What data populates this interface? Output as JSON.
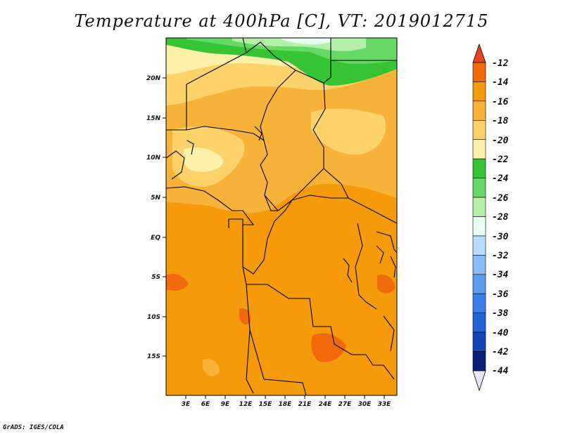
{
  "title": "Temperature at 400hPa [C], VT: 2019012715",
  "credit": "GrADS: IGES/COLA",
  "map": {
    "lat_labels": [
      "20N",
      "15N",
      "10N",
      "5N",
      "EQ",
      "5S",
      "10S",
      "15S"
    ],
    "lon_labels": [
      "3E",
      "6E",
      "9E",
      "12E",
      "15E",
      "18E",
      "21E",
      "24E",
      "27E",
      "30E",
      "33E"
    ]
  },
  "colorbar": {
    "labels": [
      "-12",
      "-14",
      "-16",
      "-18",
      "-20",
      "-22",
      "-24",
      "-26",
      "-28",
      "-30",
      "-32",
      "-34",
      "-36",
      "-38",
      "-40",
      "-42",
      "-44"
    ],
    "colors": [
      "#e8461e",
      "#f06a0c",
      "#f59a0a",
      "#f7b23a",
      "#fbd36a",
      "#fdf0a8",
      "#34c434",
      "#66d866",
      "#b4f0a8",
      "#e6fff0",
      "#b8dcff",
      "#8cbcf6",
      "#5a9cee",
      "#3a80e6",
      "#2264d6",
      "#1248b4",
      "#0a1e7a"
    ],
    "top_color": "#e8461e",
    "bottom_color": "#e6e6f6"
  }
}
